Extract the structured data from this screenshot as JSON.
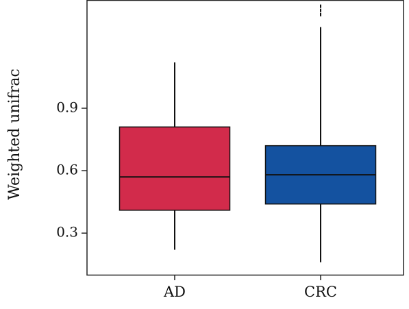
{
  "chart_data": {
    "type": "box",
    "ylabel": "Weighted unifrac",
    "xlabel": "",
    "ylim": [
      0.1,
      1.42
    ],
    "yticks": [
      0.3,
      0.6,
      0.9
    ],
    "ytick_labels": [
      "0.3",
      "0.6",
      "0.9"
    ],
    "categories": [
      "AD",
      "CRC"
    ],
    "boxes": [
      {
        "category": "AD",
        "whisker_low": 0.22,
        "q1": 0.41,
        "median": 0.57,
        "q3": 0.81,
        "whisker_high": 1.12,
        "color": "#d22b4b",
        "outliers": []
      },
      {
        "category": "CRC",
        "whisker_low": 0.16,
        "q1": 0.44,
        "median": 0.58,
        "q3": 0.72,
        "whisker_high": 1.29,
        "color": "#1452a0",
        "outliers": [
          1.35,
          1.37,
          1.39
        ]
      }
    ],
    "grid": false,
    "legend": "none"
  }
}
